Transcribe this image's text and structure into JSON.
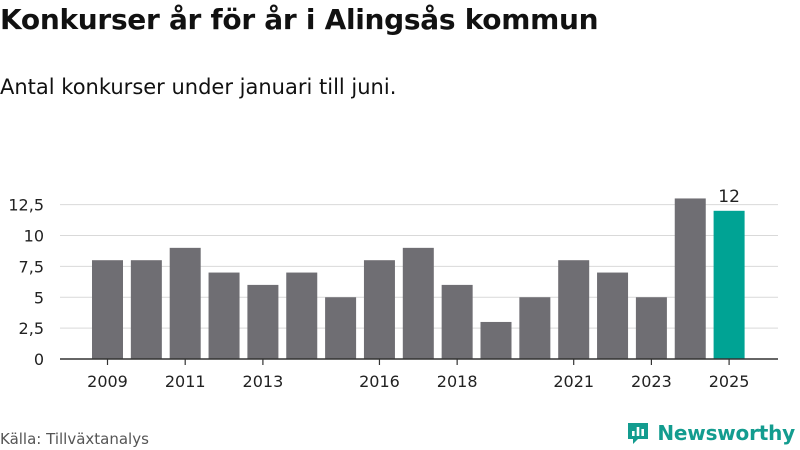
{
  "header": {
    "title": "Konkurser år för år i Alingsås kommun",
    "subtitle": "Antal konkurser under januari till juni."
  },
  "footer": {
    "source": "Källa: Tillväxtanalys",
    "brand": "Newsworthy"
  },
  "colors": {
    "bar": "#6f6e73",
    "highlight": "#00a394",
    "grid": "#d9d9d9",
    "axis": "#333333",
    "brand": "#139c8f"
  },
  "icons": {
    "brand_logo": "newsworthy-logo-icon"
  },
  "chart_data": {
    "type": "bar",
    "title": "Konkurser år för år i Alingsås kommun",
    "subtitle": "Antal konkurser under januari till juni.",
    "categories": [
      2009,
      2010,
      2011,
      2012,
      2013,
      2014,
      2015,
      2016,
      2017,
      2018,
      2019,
      2020,
      2021,
      2022,
      2023,
      2024,
      2025
    ],
    "values": [
      8,
      8,
      9,
      7,
      6,
      7,
      5,
      8,
      9,
      6,
      3,
      5,
      8,
      7,
      5,
      13,
      12
    ],
    "highlight_category": 2025,
    "data_labels": [
      {
        "category": 2025,
        "text": "12"
      }
    ],
    "x_tick_labels": [
      "2009",
      "2011",
      "2013",
      "2016",
      "2018",
      "2021",
      "2023",
      "2025"
    ],
    "y_ticks": [
      0,
      2.5,
      5,
      7.5,
      10,
      12.5
    ],
    "y_tick_labels": [
      "0",
      "2,5",
      "5",
      "7,5",
      "10",
      "12,5"
    ],
    "ylim": [
      0,
      13
    ],
    "xlabel": "",
    "ylabel": "",
    "grid": true,
    "legend": "none"
  }
}
